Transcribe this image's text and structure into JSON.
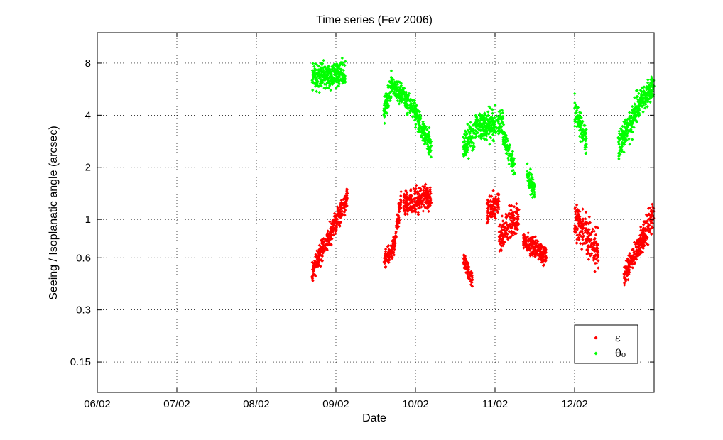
{
  "chart_data": {
    "type": "scatter",
    "title": "Time series (Fev 2006)",
    "xlabel": "Date",
    "ylabel": "Seeing / Isoplanatic angle (arcsec)",
    "x_tick_labels": [
      "06/02",
      "07/02",
      "08/02",
      "09/02",
      "10/02",
      "11/02",
      "12/02"
    ],
    "xlim_days": [
      6,
      13.0
    ],
    "y_scale": "log",
    "y_ticks": [
      0.15,
      0.3,
      0.6,
      1,
      2,
      4,
      8
    ],
    "y_tick_labels": [
      "0.15",
      "0.3",
      "0.6",
      "1",
      "2",
      "4",
      "8"
    ],
    "ylim": [
      0.1,
      12
    ],
    "grid": true,
    "legend_position": "bottom-right",
    "series": [
      {
        "name": "ε",
        "color": "#ff0000",
        "segments": [
          {
            "x0": 8.7,
            "x1": 9.15,
            "y0": 0.5,
            "y1": 1.35,
            "spread": 0.1
          },
          {
            "x0": 9.6,
            "x1": 9.75,
            "y0": 0.58,
            "y1": 0.72,
            "spread": 0.08
          },
          {
            "x0": 9.75,
            "x1": 9.82,
            "y0": 0.8,
            "y1": 1.3,
            "spread": 0.1
          },
          {
            "x0": 9.85,
            "x1": 10.2,
            "y0": 1.2,
            "y1": 1.35,
            "spread": 0.12
          },
          {
            "x0": 10.6,
            "x1": 10.72,
            "y0": 0.6,
            "y1": 0.43,
            "spread": 0.08
          },
          {
            "x0": 10.9,
            "x1": 11.05,
            "y0": 1.1,
            "y1": 1.25,
            "spread": 0.12
          },
          {
            "x0": 11.05,
            "x1": 11.3,
            "y0": 0.8,
            "y1": 1.05,
            "spread": 0.15
          },
          {
            "x0": 11.35,
            "x1": 11.65,
            "y0": 0.75,
            "y1": 0.62,
            "spread": 0.1
          },
          {
            "x0": 12.0,
            "x1": 12.3,
            "y0": 1.0,
            "y1": 0.65,
            "spread": 0.18
          },
          {
            "x0": 12.62,
            "x1": 12.8,
            "y0": 0.46,
            "y1": 0.7,
            "spread": 0.1
          },
          {
            "x0": 12.8,
            "x1": 13.0,
            "y0": 0.7,
            "y1": 1.1,
            "spread": 0.14
          }
        ]
      },
      {
        "name": "θ₀",
        "color": "#00ff00",
        "segments": [
          {
            "x0": 8.7,
            "x1": 9.12,
            "y0": 6.5,
            "y1": 7.0,
            "spread": 0.12
          },
          {
            "x0": 9.6,
            "x1": 9.7,
            "y0": 4.2,
            "y1": 6.0,
            "spread": 0.12
          },
          {
            "x0": 9.7,
            "x1": 10.0,
            "y0": 6.0,
            "y1": 4.3,
            "spread": 0.1
          },
          {
            "x0": 10.0,
            "x1": 10.2,
            "y0": 4.0,
            "y1": 2.6,
            "spread": 0.12
          },
          {
            "x0": 10.6,
            "x1": 10.75,
            "y0": 2.6,
            "y1": 3.2,
            "spread": 0.14
          },
          {
            "x0": 10.75,
            "x1": 11.1,
            "y0": 3.4,
            "y1": 3.6,
            "spread": 0.14
          },
          {
            "x0": 11.1,
            "x1": 11.25,
            "y0": 3.0,
            "y1": 2.0,
            "spread": 0.1
          },
          {
            "x0": 11.4,
            "x1": 11.5,
            "y0": 1.8,
            "y1": 1.5,
            "spread": 0.1
          },
          {
            "x0": 12.0,
            "x1": 12.15,
            "y0": 4.3,
            "y1": 2.8,
            "spread": 0.12
          },
          {
            "x0": 12.55,
            "x1": 12.8,
            "y0": 2.6,
            "y1": 4.5,
            "spread": 0.14
          },
          {
            "x0": 12.8,
            "x1": 13.0,
            "y0": 4.5,
            "y1": 6.0,
            "spread": 0.12
          }
        ]
      }
    ]
  }
}
